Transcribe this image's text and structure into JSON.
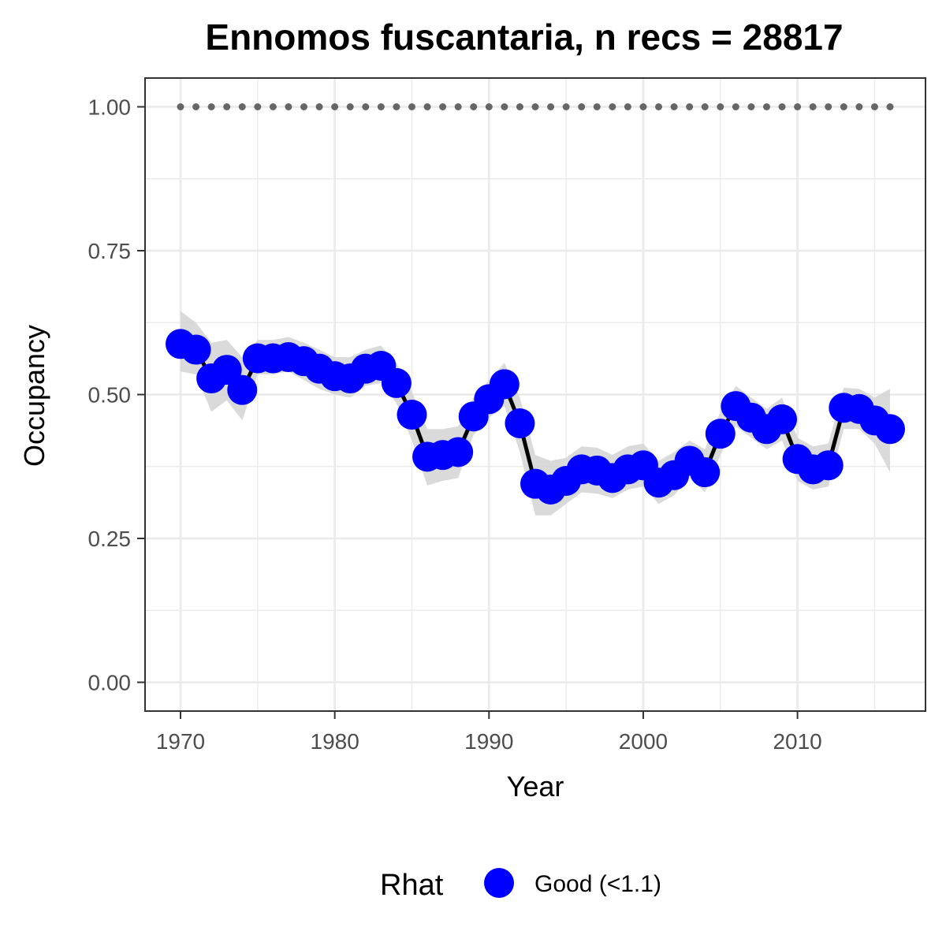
{
  "chart_data": {
    "type": "line",
    "title": "Ennomos fuscantaria, n recs = 28817",
    "xlabel": "Year",
    "ylabel": "Occupancy",
    "xlim": [
      1967.7,
      2018.3
    ],
    "ylim": [
      -0.05,
      1.05
    ],
    "xticks": [
      1970,
      1980,
      1990,
      2000,
      2010
    ],
    "xtick_labels": [
      "1970",
      "1980",
      "1990",
      "2000",
      "2010"
    ],
    "yticks": [
      0,
      0.25,
      0.5,
      0.75,
      1.0
    ],
    "ytick_labels": [
      "0.00",
      "0.25",
      "0.50",
      "0.75",
      "1.00"
    ],
    "grid": true,
    "legend_placement": "bottom",
    "legend": {
      "title": "Rhat",
      "label": "Good (<1.1)"
    },
    "colors": {
      "points": "#0000ff",
      "line": "#000000",
      "ribbon": "#d3d3d3",
      "reference": "#666666",
      "grid": "#ebebeb",
      "panel_border": "#333333"
    },
    "x": [
      1970,
      1971,
      1972,
      1973,
      1974,
      1975,
      1976,
      1977,
      1978,
      1979,
      1980,
      1981,
      1982,
      1983,
      1984,
      1985,
      1986,
      1987,
      1988,
      1989,
      1990,
      1991,
      1992,
      1993,
      1994,
      1995,
      1996,
      1997,
      1998,
      1999,
      2000,
      2001,
      2002,
      2003,
      2004,
      2005,
      2006,
      2007,
      2008,
      2009,
      2010,
      2011,
      2012,
      2013,
      2014,
      2015,
      2016
    ],
    "series": [
      {
        "values": [
          0.588,
          0.578,
          0.528,
          0.543,
          0.508,
          0.563,
          0.563,
          0.565,
          0.558,
          0.545,
          0.532,
          0.528,
          0.545,
          0.55,
          0.52,
          0.465,
          0.392,
          0.395,
          0.4,
          0.462,
          0.492,
          0.518,
          0.45,
          0.345,
          0.335,
          0.35,
          0.37,
          0.368,
          0.355,
          0.37,
          0.377,
          0.347,
          0.36,
          0.385,
          0.365,
          0.432,
          0.48,
          0.46,
          0.44,
          0.457,
          0.388,
          0.37,
          0.377,
          0.477,
          0.475,
          0.455,
          0.44
        ],
        "lower": [
          0.54,
          0.535,
          0.47,
          0.49,
          0.455,
          0.535,
          0.535,
          0.54,
          0.525,
          0.51,
          0.5,
          0.495,
          0.515,
          0.52,
          0.485,
          0.42,
          0.342,
          0.35,
          0.355,
          0.43,
          0.46,
          0.48,
          0.4,
          0.29,
          0.29,
          0.31,
          0.33,
          0.328,
          0.32,
          0.335,
          0.34,
          0.31,
          0.325,
          0.355,
          0.33,
          0.395,
          0.445,
          0.425,
          0.405,
          0.42,
          0.35,
          0.335,
          0.34,
          0.44,
          0.44,
          0.415,
          0.365
        ],
        "upper": [
          0.645,
          0.625,
          0.59,
          0.595,
          0.565,
          0.595,
          0.595,
          0.6,
          0.59,
          0.578,
          0.565,
          0.565,
          0.578,
          0.585,
          0.555,
          0.505,
          0.44,
          0.44,
          0.445,
          0.495,
          0.525,
          0.555,
          0.495,
          0.395,
          0.385,
          0.39,
          0.41,
          0.408,
          0.395,
          0.41,
          0.415,
          0.385,
          0.4,
          0.42,
          0.405,
          0.47,
          0.515,
          0.495,
          0.475,
          0.495,
          0.425,
          0.41,
          0.415,
          0.512,
          0.51,
          0.495,
          0.51
        ]
      }
    ],
    "reference_line": {
      "y": 1.0
    }
  }
}
